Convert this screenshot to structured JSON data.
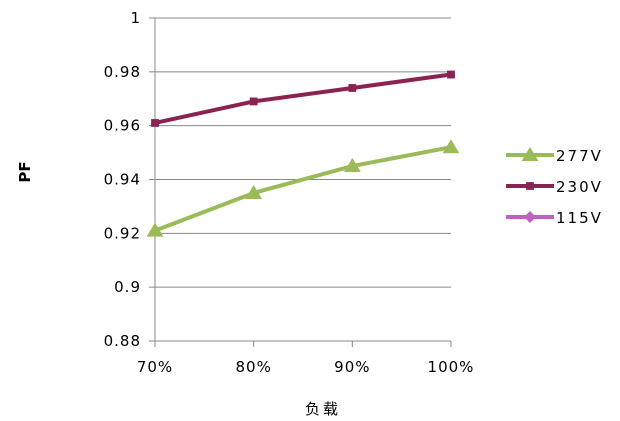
{
  "chart_data": {
    "type": "line",
    "categories": [
      "70%",
      "80%",
      "90%",
      "100%"
    ],
    "ylim": [
      0.88,
      1
    ],
    "yticks": [
      "1",
      "0.98",
      "0.96",
      "0.94",
      "0.92",
      "0.9",
      "0.88"
    ],
    "ytick_values": [
      1,
      0.98,
      0.96,
      0.94,
      0.92,
      0.9,
      0.88
    ],
    "xlabel": "负载",
    "ylabel": "PF",
    "grid": "horizontal",
    "legend_position": "right",
    "series": [
      {
        "name": "277V",
        "values": [
          0.921,
          0.935,
          0.945,
          0.952
        ],
        "color": "#9bbb59",
        "marker": "triangle"
      },
      {
        "name": "230V",
        "values": [
          0.961,
          0.969,
          0.974,
          0.979
        ],
        "color": "#8b2252",
        "marker": "square"
      },
      {
        "name": "115V",
        "values": [
          null,
          null,
          null,
          null
        ],
        "color": "#c060c0",
        "marker": "diamond"
      }
    ]
  }
}
